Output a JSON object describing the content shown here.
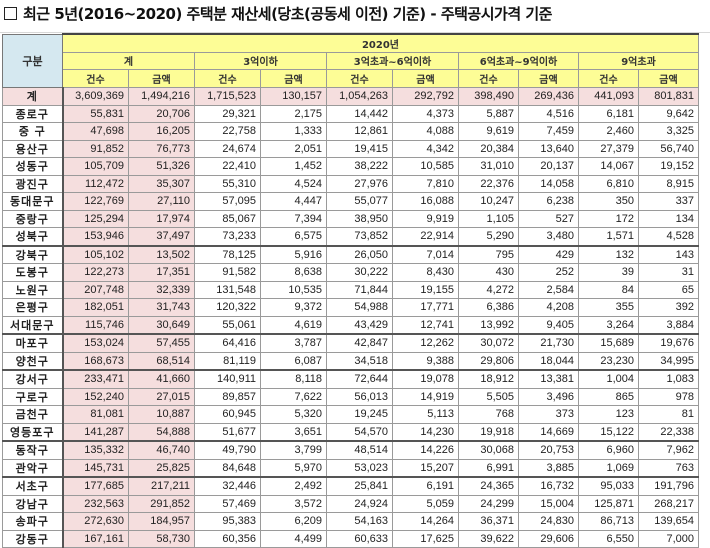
{
  "title": "최근 5년(2016~2020) 주택분 재산세(당초(공동세 이전) 기준) - 주택공시가격 기준",
  "header": {
    "gubun": "구분",
    "year": "2020년",
    "groups": [
      "계",
      "3억이하",
      "3억초과~6억이하",
      "6억초과~9억이하",
      "9억초과"
    ],
    "sub": [
      "건수",
      "금액"
    ]
  },
  "total": {
    "name": "계",
    "values": [
      "3,609,369",
      "1,494,216",
      "1,715,523",
      "130,157",
      "1,054,263",
      "292,792",
      "398,490",
      "269,436",
      "441,093",
      "801,831"
    ]
  },
  "rows": [
    {
      "name": "종로구",
      "values": [
        "55,831",
        "20,706",
        "29,321",
        "2,175",
        "14,442",
        "4,373",
        "5,887",
        "4,516",
        "6,181",
        "9,642"
      ]
    },
    {
      "name": "중 구",
      "values": [
        "47,698",
        "16,205",
        "22,758",
        "1,333",
        "12,861",
        "4,088",
        "9,619",
        "7,459",
        "2,460",
        "3,325"
      ]
    },
    {
      "name": "용산구",
      "values": [
        "91,852",
        "76,773",
        "24,674",
        "2,051",
        "19,415",
        "4,342",
        "20,384",
        "13,640",
        "27,379",
        "56,740"
      ]
    },
    {
      "name": "성동구",
      "values": [
        "105,709",
        "51,326",
        "22,410",
        "1,452",
        "38,222",
        "10,585",
        "31,010",
        "20,137",
        "14,067",
        "19,152"
      ]
    },
    {
      "name": "광진구",
      "values": [
        "112,472",
        "35,307",
        "55,310",
        "4,524",
        "27,976",
        "7,810",
        "22,376",
        "14,058",
        "6,810",
        "8,915"
      ]
    },
    {
      "name": "동대문구",
      "values": [
        "122,769",
        "27,110",
        "57,095",
        "4,447",
        "55,077",
        "16,088",
        "10,247",
        "6,238",
        "350",
        "337"
      ]
    },
    {
      "name": "중랑구",
      "values": [
        "125,294",
        "17,974",
        "85,067",
        "7,394",
        "38,950",
        "9,919",
        "1,105",
        "527",
        "172",
        "134"
      ]
    },
    {
      "name": "성북구",
      "values": [
        "153,946",
        "37,497",
        "73,233",
        "6,575",
        "73,852",
        "22,914",
        "5,290",
        "3,480",
        "1,571",
        "4,528"
      ]
    },
    {
      "name": "강북구",
      "values": [
        "105,102",
        "13,502",
        "78,125",
        "5,916",
        "26,050",
        "7,014",
        "795",
        "429",
        "132",
        "143"
      ]
    },
    {
      "name": "도봉구",
      "values": [
        "122,273",
        "17,351",
        "91,582",
        "8,638",
        "30,222",
        "8,430",
        "430",
        "252",
        "39",
        "31"
      ]
    },
    {
      "name": "노원구",
      "values": [
        "207,748",
        "32,339",
        "131,548",
        "10,535",
        "71,844",
        "19,155",
        "4,272",
        "2,584",
        "84",
        "65"
      ]
    },
    {
      "name": "은평구",
      "values": [
        "182,051",
        "31,743",
        "120,322",
        "9,372",
        "54,988",
        "17,771",
        "6,386",
        "4,208",
        "355",
        "392"
      ]
    },
    {
      "name": "서대문구",
      "values": [
        "115,746",
        "30,649",
        "55,061",
        "4,619",
        "43,429",
        "12,741",
        "13,992",
        "9,405",
        "3,264",
        "3,884"
      ]
    },
    {
      "name": "마포구",
      "values": [
        "153,024",
        "57,455",
        "64,416",
        "3,787",
        "42,847",
        "12,262",
        "30,072",
        "21,730",
        "15,689",
        "19,676"
      ]
    },
    {
      "name": "양천구",
      "values": [
        "168,673",
        "68,514",
        "81,119",
        "6,087",
        "34,518",
        "9,388",
        "29,806",
        "18,044",
        "23,230",
        "34,995"
      ]
    },
    {
      "name": "강서구",
      "values": [
        "233,471",
        "41,660",
        "140,911",
        "8,118",
        "72,644",
        "19,078",
        "18,912",
        "13,381",
        "1,004",
        "1,083"
      ]
    },
    {
      "name": "구로구",
      "values": [
        "152,240",
        "27,015",
        "89,857",
        "7,622",
        "56,013",
        "14,919",
        "5,505",
        "3,496",
        "865",
        "978"
      ]
    },
    {
      "name": "금천구",
      "values": [
        "81,081",
        "10,887",
        "60,945",
        "5,320",
        "19,245",
        "5,113",
        "768",
        "373",
        "123",
        "81"
      ]
    },
    {
      "name": "영등포구",
      "values": [
        "141,287",
        "54,888",
        "51,677",
        "3,651",
        "54,570",
        "14,230",
        "19,918",
        "14,669",
        "15,122",
        "22,338"
      ]
    },
    {
      "name": "동작구",
      "values": [
        "135,332",
        "46,740",
        "49,790",
        "3,799",
        "48,514",
        "14,226",
        "30,068",
        "20,753",
        "6,960",
        "7,962"
      ]
    },
    {
      "name": "관악구",
      "values": [
        "145,731",
        "25,825",
        "84,648",
        "5,970",
        "53,023",
        "15,207",
        "6,991",
        "3,885",
        "1,069",
        "763"
      ]
    },
    {
      "name": "서초구",
      "values": [
        "177,685",
        "217,211",
        "32,446",
        "2,492",
        "25,841",
        "6,191",
        "24,365",
        "16,732",
        "95,033",
        "191,796"
      ]
    },
    {
      "name": "강남구",
      "values": [
        "232,563",
        "291,852",
        "57,469",
        "3,572",
        "24,924",
        "5,059",
        "24,299",
        "15,004",
        "125,871",
        "268,217"
      ]
    },
    {
      "name": "송파구",
      "values": [
        "272,630",
        "184,957",
        "95,383",
        "6,209",
        "54,163",
        "14,264",
        "36,371",
        "24,830",
        "86,713",
        "139,654"
      ]
    },
    {
      "name": "강동구",
      "values": [
        "167,161",
        "58,730",
        "60,356",
        "4,499",
        "60,633",
        "17,625",
        "39,622",
        "29,606",
        "6,550",
        "7,000"
      ]
    }
  ]
}
